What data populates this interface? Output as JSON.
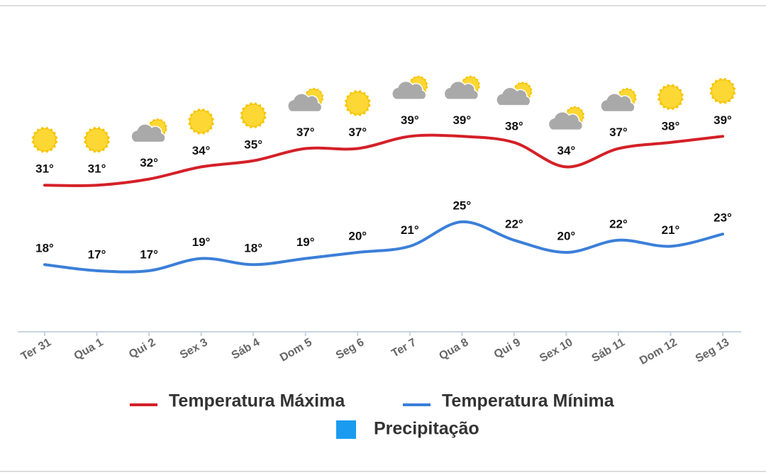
{
  "chart_data": {
    "type": "line",
    "categories": [
      "Ter 31",
      "Qua 1",
      "Qui 2",
      "Sex 3",
      "Sáb 4",
      "Dom 5",
      "Seg 6",
      "Ter 7",
      "Qua 8",
      "Qui 9",
      "Sex 10",
      "Sáb 11",
      "Dom 12",
      "Seg 13"
    ],
    "icons": [
      "sun",
      "sun",
      "partly-cloudy",
      "sun",
      "sun",
      "partly-cloudy",
      "sun",
      "partly-cloudy",
      "partly-cloudy",
      "partly-cloudy",
      "partly-cloudy",
      "partly-cloudy",
      "sun",
      "sun"
    ],
    "series": [
      {
        "name": "Temperatura Máxima",
        "color": "#d42027",
        "values": [
          31,
          31,
          32,
          34,
          35,
          37,
          37,
          39,
          39,
          38,
          34,
          37,
          38,
          39
        ],
        "value_labels": [
          "31°",
          "31°",
          "32°",
          "34°",
          "35°",
          "37°",
          "37°",
          "39°",
          "39°",
          "38°",
          "34°",
          "37°",
          "38°",
          "39°"
        ]
      },
      {
        "name": "Temperatura Mínima",
        "color": "#3b7fd9",
        "values": [
          18,
          17,
          17,
          19,
          18,
          19,
          20,
          21,
          25,
          22,
          20,
          22,
          21,
          23
        ],
        "value_labels": [
          "18°",
          "17°",
          "17°",
          "19°",
          "18°",
          "19°",
          "20°",
          "21°",
          "25°",
          "22°",
          "20°",
          "22°",
          "21°",
          "23°"
        ]
      },
      {
        "name": "Precipitação",
        "color": "#1a9bf0",
        "values": [
          null,
          null,
          null,
          null,
          null,
          null,
          null,
          null,
          null,
          null,
          null,
          null,
          null,
          null
        ]
      }
    ],
    "ylim": [
      7,
      59
    ]
  }
}
